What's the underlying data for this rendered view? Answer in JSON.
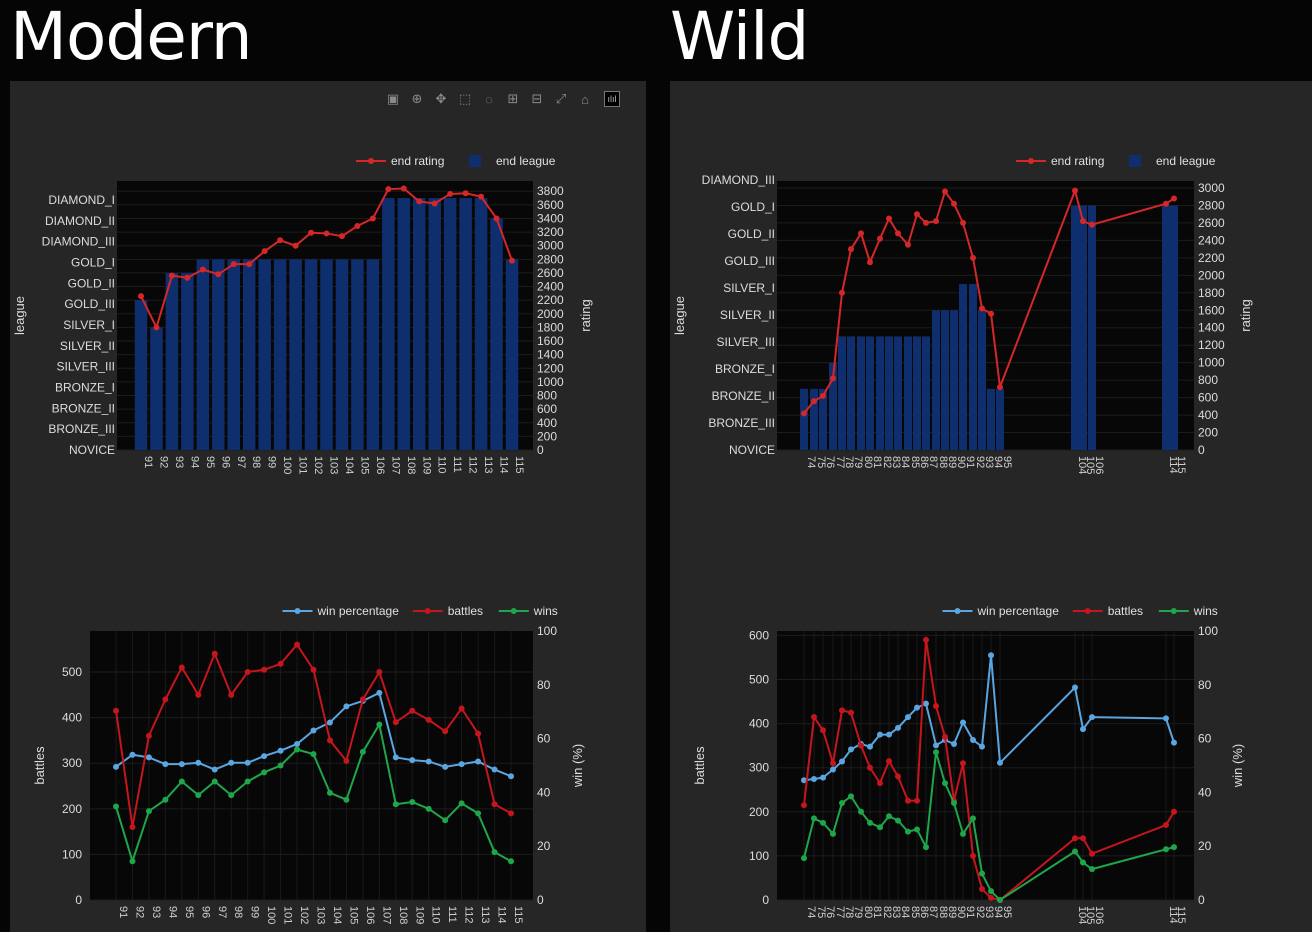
{
  "modern_title": "Modern",
  "wild_title": "Wild",
  "toolbar": {
    "icons": [
      "camera-icon",
      "zoom-icon",
      "pan-icon",
      "box-select-icon",
      "lasso-icon",
      "zoom-in-icon",
      "zoom-out-icon",
      "autoscale-icon",
      "reset-axes-icon",
      "plotly-logo-icon"
    ],
    "logo_text": "ılıl"
  },
  "colors": {
    "rating": "#d62728",
    "league": "#0f2e6e",
    "winpct": "#5aa6e0",
    "battles": "#c4161c",
    "wins": "#1fa64a"
  },
  "chart_data": [
    {
      "id": "modern-league",
      "type": "bar+line",
      "legend": [
        "end rating",
        "end league"
      ],
      "xlabel": "",
      "y1label": "league",
      "y2label": "rating",
      "y1_ticks": [
        "NOVICE",
        "BRONZE_III",
        "BRONZE_II",
        "BRONZE_I",
        "SILVER_III",
        "SILVER_II",
        "SILVER_I",
        "GOLD_III",
        "GOLD_II",
        "GOLD_I",
        "DIAMOND_III",
        "DIAMOND_II",
        "DIAMOND_I"
      ],
      "y2_ticks": [
        0,
        200,
        400,
        600,
        800,
        1000,
        1200,
        1400,
        1600,
        1800,
        2000,
        2200,
        2400,
        2600,
        2800,
        3000,
        3200,
        3400,
        3600,
        3800
      ],
      "y2lim": [
        0,
        3950
      ],
      "x": [
        91,
        92,
        93,
        94,
        95,
        96,
        97,
        98,
        99,
        100,
        101,
        102,
        103,
        104,
        105,
        106,
        107,
        108,
        109,
        110,
        111,
        112,
        113,
        114,
        115
      ],
      "league_values": [
        2200,
        1800,
        2600,
        2600,
        2800,
        2800,
        2800,
        2800,
        2800,
        2800,
        2800,
        2800,
        2800,
        2800,
        2800,
        2800,
        3700,
        3700,
        3700,
        3700,
        3700,
        3700,
        3700,
        3400,
        2800
      ],
      "rating": [
        2260,
        1800,
        2560,
        2530,
        2650,
        2580,
        2730,
        2730,
        2920,
        3080,
        3000,
        3190,
        3180,
        3140,
        3290,
        3400,
        3830,
        3840,
        3650,
        3620,
        3760,
        3770,
        3720,
        3400,
        2780
      ]
    },
    {
      "id": "modern-battles",
      "type": "line",
      "legend": [
        "win percentage",
        "battles",
        "wins"
      ],
      "y1label": "battles",
      "y2label": "win (%)",
      "y1_ticks": [
        0,
        100,
        200,
        300,
        400,
        500
      ],
      "y1lim": [
        0,
        590
      ],
      "y2_ticks": [
        0,
        20,
        40,
        60,
        80,
        100
      ],
      "y2lim": [
        0,
        100
      ],
      "x": [
        91,
        92,
        93,
        94,
        95,
        96,
        97,
        98,
        99,
        100,
        101,
        102,
        103,
        104,
        105,
        106,
        107,
        108,
        109,
        110,
        111,
        112,
        113,
        114,
        115
      ],
      "win_percentage": [
        49.5,
        54,
        53,
        50.5,
        50.5,
        51,
        48.5,
        51,
        51,
        53.5,
        55.5,
        58,
        63,
        66,
        72,
        74,
        77,
        53,
        52,
        51.5,
        49.5,
        50.5,
        51.5,
        48.5,
        46
      ],
      "battles": [
        415,
        160,
        360,
        440,
        510,
        450,
        540,
        450,
        500,
        505,
        518,
        560,
        505,
        350,
        305,
        440,
        500,
        390,
        415,
        395,
        370,
        420,
        365,
        210,
        190
      ],
      "wins": [
        205,
        85,
        195,
        220,
        260,
        230,
        260,
        230,
        260,
        280,
        295,
        330,
        320,
        235,
        220,
        325,
        385,
        210,
        215,
        200,
        175,
        212,
        190,
        105,
        85
      ]
    },
    {
      "id": "wild-league",
      "type": "bar+line",
      "legend": [
        "end rating",
        "end league"
      ],
      "y1label": "league",
      "y2label": "rating",
      "y1_ticks": [
        "NOVICE",
        "BRONZE_III",
        "BRONZE_II",
        "BRONZE_I",
        "SILVER_III",
        "SILVER_II",
        "SILVER_I",
        "GOLD_III",
        "GOLD_II",
        "GOLD_I",
        "DIAMOND_III"
      ],
      "y2_ticks": [
        0,
        200,
        400,
        600,
        800,
        1000,
        1200,
        1400,
        1600,
        1800,
        2000,
        2200,
        2400,
        2600,
        2800,
        3000
      ],
      "y2lim": [
        0,
        3080
      ],
      "x": [
        74,
        75,
        76,
        77,
        78,
        79,
        80,
        81,
        82,
        83,
        84,
        85,
        86,
        87,
        88,
        89,
        90,
        91,
        92,
        93,
        94,
        95,
        104,
        105,
        106,
        114,
        115
      ],
      "x_tick_labels": [
        "74",
        "75",
        "76",
        "77",
        "78",
        "79",
        "80",
        "81",
        "82",
        "83",
        "84",
        "85",
        "86",
        "87",
        "88",
        "89",
        "90",
        "91",
        "92",
        "93",
        "94",
        "95",
        "104",
        "105",
        "106",
        "114",
        "115"
      ],
      "league_values": [
        700,
        700,
        700,
        1000,
        1300,
        1300,
        1300,
        1300,
        1300,
        1300,
        1300,
        1300,
        1300,
        1300,
        1600,
        1600,
        1600,
        1900,
        1900,
        1600,
        700,
        700,
        2800,
        2800,
        2800,
        2800,
        2800
      ],
      "rating": [
        420,
        560,
        620,
        820,
        1800,
        2300,
        2480,
        2150,
        2420,
        2650,
        2480,
        2350,
        2700,
        2600,
        2620,
        2960,
        2820,
        2600,
        2200,
        1620,
        1560,
        720,
        2970,
        2620,
        2580,
        2820,
        2880
      ]
    },
    {
      "id": "wild-battles",
      "type": "line",
      "legend": [
        "win percentage",
        "battles",
        "wins"
      ],
      "y1label": "battles",
      "y2label": "win (%)",
      "y1_ticks": [
        0,
        100,
        200,
        300,
        400,
        500,
        600
      ],
      "y1lim": [
        0,
        610
      ],
      "y2_ticks": [
        0,
        20,
        40,
        60,
        80,
        100
      ],
      "y2lim": [
        0,
        100
      ],
      "x": [
        74,
        75,
        76,
        77,
        78,
        79,
        80,
        81,
        82,
        83,
        84,
        85,
        86,
        87,
        88,
        89,
        90,
        91,
        92,
        93,
        94,
        95,
        104,
        105,
        106,
        114,
        115
      ],
      "x_tick_labels": [
        "74",
        "75",
        "76",
        "77",
        "78",
        "79",
        "80",
        "81",
        "82",
        "83",
        "84",
        "85",
        "86",
        "87",
        "88",
        "89",
        "90",
        "91",
        "92",
        "93",
        "94",
        "95",
        "104",
        "105",
        "106",
        "114",
        "115"
      ],
      "win_percentage": [
        44.5,
        45,
        45.5,
        48.5,
        51.5,
        56,
        58,
        57,
        61.5,
        61.5,
        64,
        68,
        71.5,
        73,
        57.5,
        59.5,
        58,
        66,
        59.5,
        57,
        91,
        51,
        79,
        63.5,
        68,
        67.5,
        58.5
      ],
      "battles": [
        215,
        415,
        385,
        310,
        430,
        425,
        350,
        300,
        265,
        315,
        280,
        225,
        225,
        590,
        440,
        370,
        225,
        310,
        100,
        25,
        5,
        0,
        140,
        140,
        105,
        170,
        200
      ],
      "wins": [
        95,
        185,
        175,
        150,
        220,
        235,
        200,
        175,
        165,
        190,
        180,
        155,
        160,
        120,
        335,
        265,
        220,
        150,
        185,
        60,
        20,
        0,
        110,
        85,
        70,
        115,
        120
      ]
    }
  ]
}
